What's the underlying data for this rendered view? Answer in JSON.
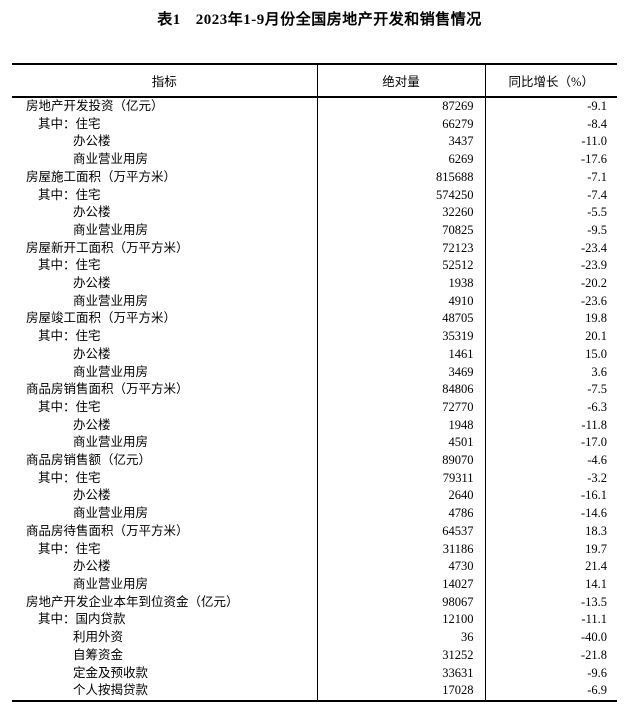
{
  "title": {
    "prefix": "表1",
    "text": "2023年1-9月份全国房地产开发和销售情况"
  },
  "colors": {
    "background": "#ffffff",
    "text": "#000000",
    "border": "#000000"
  },
  "table": {
    "columns": [
      {
        "key": "indicator",
        "label": "指标"
      },
      {
        "key": "absolute",
        "label": "绝对量"
      },
      {
        "key": "growth",
        "label": "同比增长（%）"
      }
    ],
    "rows": [
      {
        "label": "房地产开发投资（亿元）",
        "indent": 0,
        "absolute": "87269",
        "growth": "-9.1"
      },
      {
        "label": "其中：住宅",
        "indent": 1,
        "absolute": "66279",
        "growth": "-8.4"
      },
      {
        "label": "办公楼",
        "indent": 2,
        "absolute": "3437",
        "growth": "-11.0"
      },
      {
        "label": "商业营业用房",
        "indent": 2,
        "absolute": "6269",
        "growth": "-17.6"
      },
      {
        "label": "房屋施工面积（万平方米）",
        "indent": 0,
        "absolute": "815688",
        "growth": "-7.1"
      },
      {
        "label": "其中：住宅",
        "indent": 1,
        "absolute": "574250",
        "growth": "-7.4"
      },
      {
        "label": "办公楼",
        "indent": 2,
        "absolute": "32260",
        "growth": "-5.5"
      },
      {
        "label": "商业营业用房",
        "indent": 2,
        "absolute": "70825",
        "growth": "-9.5"
      },
      {
        "label": "房屋新开工面积（万平方米）",
        "indent": 0,
        "absolute": "72123",
        "growth": "-23.4"
      },
      {
        "label": "其中：住宅",
        "indent": 1,
        "absolute": "52512",
        "growth": "-23.9"
      },
      {
        "label": "办公楼",
        "indent": 2,
        "absolute": "1938",
        "growth": "-20.2"
      },
      {
        "label": "商业营业用房",
        "indent": 2,
        "absolute": "4910",
        "growth": "-23.6"
      },
      {
        "label": "房屋竣工面积（万平方米）",
        "indent": 0,
        "absolute": "48705",
        "growth": "19.8"
      },
      {
        "label": "其中：住宅",
        "indent": 1,
        "absolute": "35319",
        "growth": "20.1"
      },
      {
        "label": "办公楼",
        "indent": 2,
        "absolute": "1461",
        "growth": "15.0"
      },
      {
        "label": "商业营业用房",
        "indent": 2,
        "absolute": "3469",
        "growth": "3.6"
      },
      {
        "label": "商品房销售面积（万平方米）",
        "indent": 0,
        "absolute": "84806",
        "growth": "-7.5"
      },
      {
        "label": "其中：住宅",
        "indent": 1,
        "absolute": "72770",
        "growth": "-6.3"
      },
      {
        "label": "办公楼",
        "indent": 2,
        "absolute": "1948",
        "growth": "-11.8"
      },
      {
        "label": "商业营业用房",
        "indent": 2,
        "absolute": "4501",
        "growth": "-17.0"
      },
      {
        "label": "商品房销售额（亿元）",
        "indent": 0,
        "absolute": "89070",
        "growth": "-4.6"
      },
      {
        "label": "其中：住宅",
        "indent": 1,
        "absolute": "79311",
        "growth": "-3.2"
      },
      {
        "label": "办公楼",
        "indent": 2,
        "absolute": "2640",
        "growth": "-16.1"
      },
      {
        "label": "商业营业用房",
        "indent": 2,
        "absolute": "4786",
        "growth": "-14.6"
      },
      {
        "label": "商品房待售面积（万平方米）",
        "indent": 0,
        "absolute": "64537",
        "growth": "18.3"
      },
      {
        "label": "其中：住宅",
        "indent": 1,
        "absolute": "31186",
        "growth": "19.7"
      },
      {
        "label": "办公楼",
        "indent": 2,
        "absolute": "4730",
        "growth": "21.4"
      },
      {
        "label": "商业营业用房",
        "indent": 2,
        "absolute": "14027",
        "growth": "14.1"
      },
      {
        "label": "房地产开发企业本年到位资金（亿元）",
        "indent": 0,
        "absolute": "98067",
        "growth": "-13.5"
      },
      {
        "label": "其中：国内贷款",
        "indent": 1,
        "absolute": "12100",
        "growth": "-11.1"
      },
      {
        "label": "利用外资",
        "indent": 2,
        "absolute": "36",
        "growth": "-40.0"
      },
      {
        "label": "自筹资金",
        "indent": 2,
        "absolute": "31252",
        "growth": "-21.8"
      },
      {
        "label": "定金及预收款",
        "indent": 2,
        "absolute": "33631",
        "growth": "-9.6"
      },
      {
        "label": "个人按揭贷款",
        "indent": 2,
        "absolute": "17028",
        "growth": "-6.9"
      }
    ]
  }
}
